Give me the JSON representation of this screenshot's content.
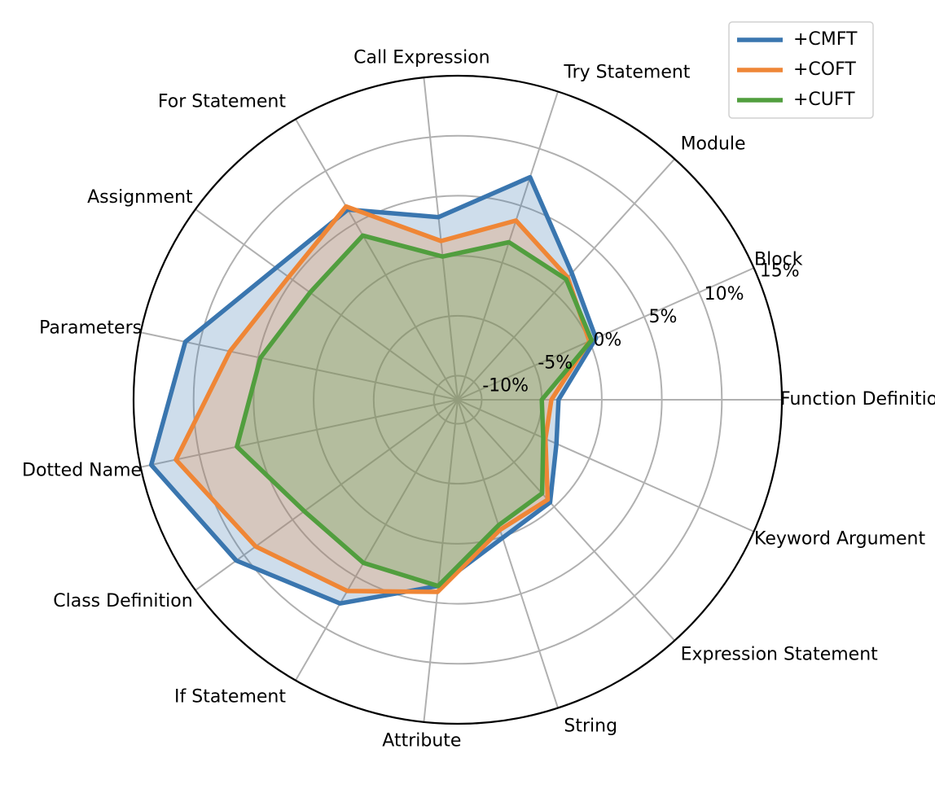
{
  "chart_data": {
    "type": "radar",
    "title": "",
    "categories": [
      "Function Definition",
      "Block",
      "Module",
      "Try Statement",
      "Call Expression",
      "For Statement",
      "Assignment",
      "Parameters",
      "Dotted Name",
      "Class Definition",
      "If Statement",
      "Attribute",
      "String",
      "Expression Statement",
      "Keyword Argument"
    ],
    "rlim": [
      -12,
      15
    ],
    "ticks": [
      -10,
      -5,
      0,
      5,
      10,
      15
    ],
    "tick_labels": [
      "-10%",
      "-5%",
      "0%",
      "5%",
      "10%",
      "15%"
    ],
    "series": [
      {
        "name": "+CMFT",
        "color": "#3a76af",
        "values": [
          -3.6,
          0.6,
          2.2,
          7.5,
          3.3,
          6.3,
          6.7,
          11.2,
          14.1,
          10.8,
          7.6,
          3.6,
          0.1,
          -0.5,
          -3.0
        ]
      },
      {
        "name": "+COFT",
        "color": "#ef8636",
        "values": [
          -4.2,
          0.0,
          1.7,
          3.7,
          1.3,
          6.6,
          5.4,
          7.4,
          12.0,
          8.8,
          6.4,
          4.1,
          -0.6,
          -0.8,
          -4.0
        ]
      },
      {
        "name": "+CUFT",
        "color": "#519e3e",
        "values": [
          -5.0,
          0.2,
          1.5,
          1.8,
          0.0,
          3.8,
          3.2,
          4.8,
          6.8,
          3.8,
          3.7,
          3.6,
          -1.0,
          -1.5,
          -4.2
        ]
      }
    ],
    "legend": {
      "position": "top-right",
      "entries": [
        "+CMFT",
        "+COFT",
        "+CUFT"
      ]
    },
    "grid": true
  }
}
